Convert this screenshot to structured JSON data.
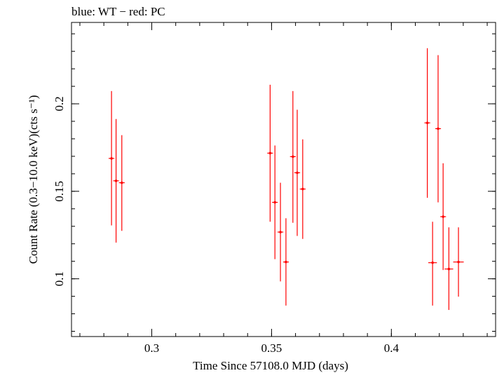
{
  "chart_data": {
    "type": "scatter",
    "title": "blue: WT − red: PC",
    "xlabel": "Time Since 57108.0 MJD (days)",
    "ylabel": "Count Rate (0.3−10.0 keV)(cts s⁻¹)",
    "xlim": [
      0.2665,
      0.4435
    ],
    "ylim": [
      0.067,
      0.2465
    ],
    "x_ticks": [
      {
        "value": 0.3,
        "label": "0.3"
      },
      {
        "value": 0.35,
        "label": "0.35"
      },
      {
        "value": 0.4,
        "label": "0.4"
      }
    ],
    "y_ticks": [
      {
        "value": 0.1,
        "label": "0.1"
      },
      {
        "value": 0.15,
        "label": "0.15"
      },
      {
        "value": 0.2,
        "label": "0.2"
      }
    ],
    "x_minor_step": 0.01,
    "y_minor_step": 0.01,
    "grid": false,
    "series": [
      {
        "color": "#ff0000",
        "points": [
          {
            "x": 0.2832,
            "xerr": 0.0012,
            "y": 0.1688,
            "ylo": 0.1305,
            "yhi": 0.2073
          },
          {
            "x": 0.2851,
            "xerr": 0.0012,
            "y": 0.156,
            "ylo": 0.1207,
            "yhi": 0.1913
          },
          {
            "x": 0.2875,
            "xerr": 0.0012,
            "y": 0.1549,
            "ylo": 0.1274,
            "yhi": 0.1821
          },
          {
            "x": 0.3494,
            "xerr": 0.0012,
            "y": 0.1718,
            "ylo": 0.1326,
            "yhi": 0.2109
          },
          {
            "x": 0.3514,
            "xerr": 0.0012,
            "y": 0.1437,
            "ylo": 0.1112,
            "yhi": 0.1762
          },
          {
            "x": 0.3537,
            "xerr": 0.0012,
            "y": 0.1267,
            "ylo": 0.0985,
            "yhi": 0.1549
          },
          {
            "x": 0.356,
            "xerr": 0.0012,
            "y": 0.1096,
            "ylo": 0.0847,
            "yhi": 0.1346
          },
          {
            "x": 0.3589,
            "xerr": 0.0012,
            "y": 0.1698,
            "ylo": 0.132,
            "yhi": 0.2073
          },
          {
            "x": 0.3607,
            "xerr": 0.0012,
            "y": 0.1606,
            "ylo": 0.1245,
            "yhi": 0.1966
          },
          {
            "x": 0.363,
            "xerr": 0.0012,
            "y": 0.1513,
            "ylo": 0.1228,
            "yhi": 0.1797
          },
          {
            "x": 0.415,
            "xerr": 0.0012,
            "y": 0.1891,
            "ylo": 0.1463,
            "yhi": 0.2318
          },
          {
            "x": 0.4172,
            "xerr": 0.0018,
            "y": 0.1092,
            "ylo": 0.0847,
            "yhi": 0.1326
          },
          {
            "x": 0.4195,
            "xerr": 0.0012,
            "y": 0.1858,
            "ylo": 0.1437,
            "yhi": 0.2278
          },
          {
            "x": 0.4216,
            "xerr": 0.0012,
            "y": 0.1355,
            "ylo": 0.105,
            "yhi": 0.166
          },
          {
            "x": 0.424,
            "xerr": 0.0018,
            "y": 0.1056,
            "ylo": 0.0822,
            "yhi": 0.1294
          },
          {
            "x": 0.428,
            "xerr": 0.0022,
            "y": 0.1096,
            "ylo": 0.0898,
            "yhi": 0.1294
          }
        ]
      }
    ]
  }
}
